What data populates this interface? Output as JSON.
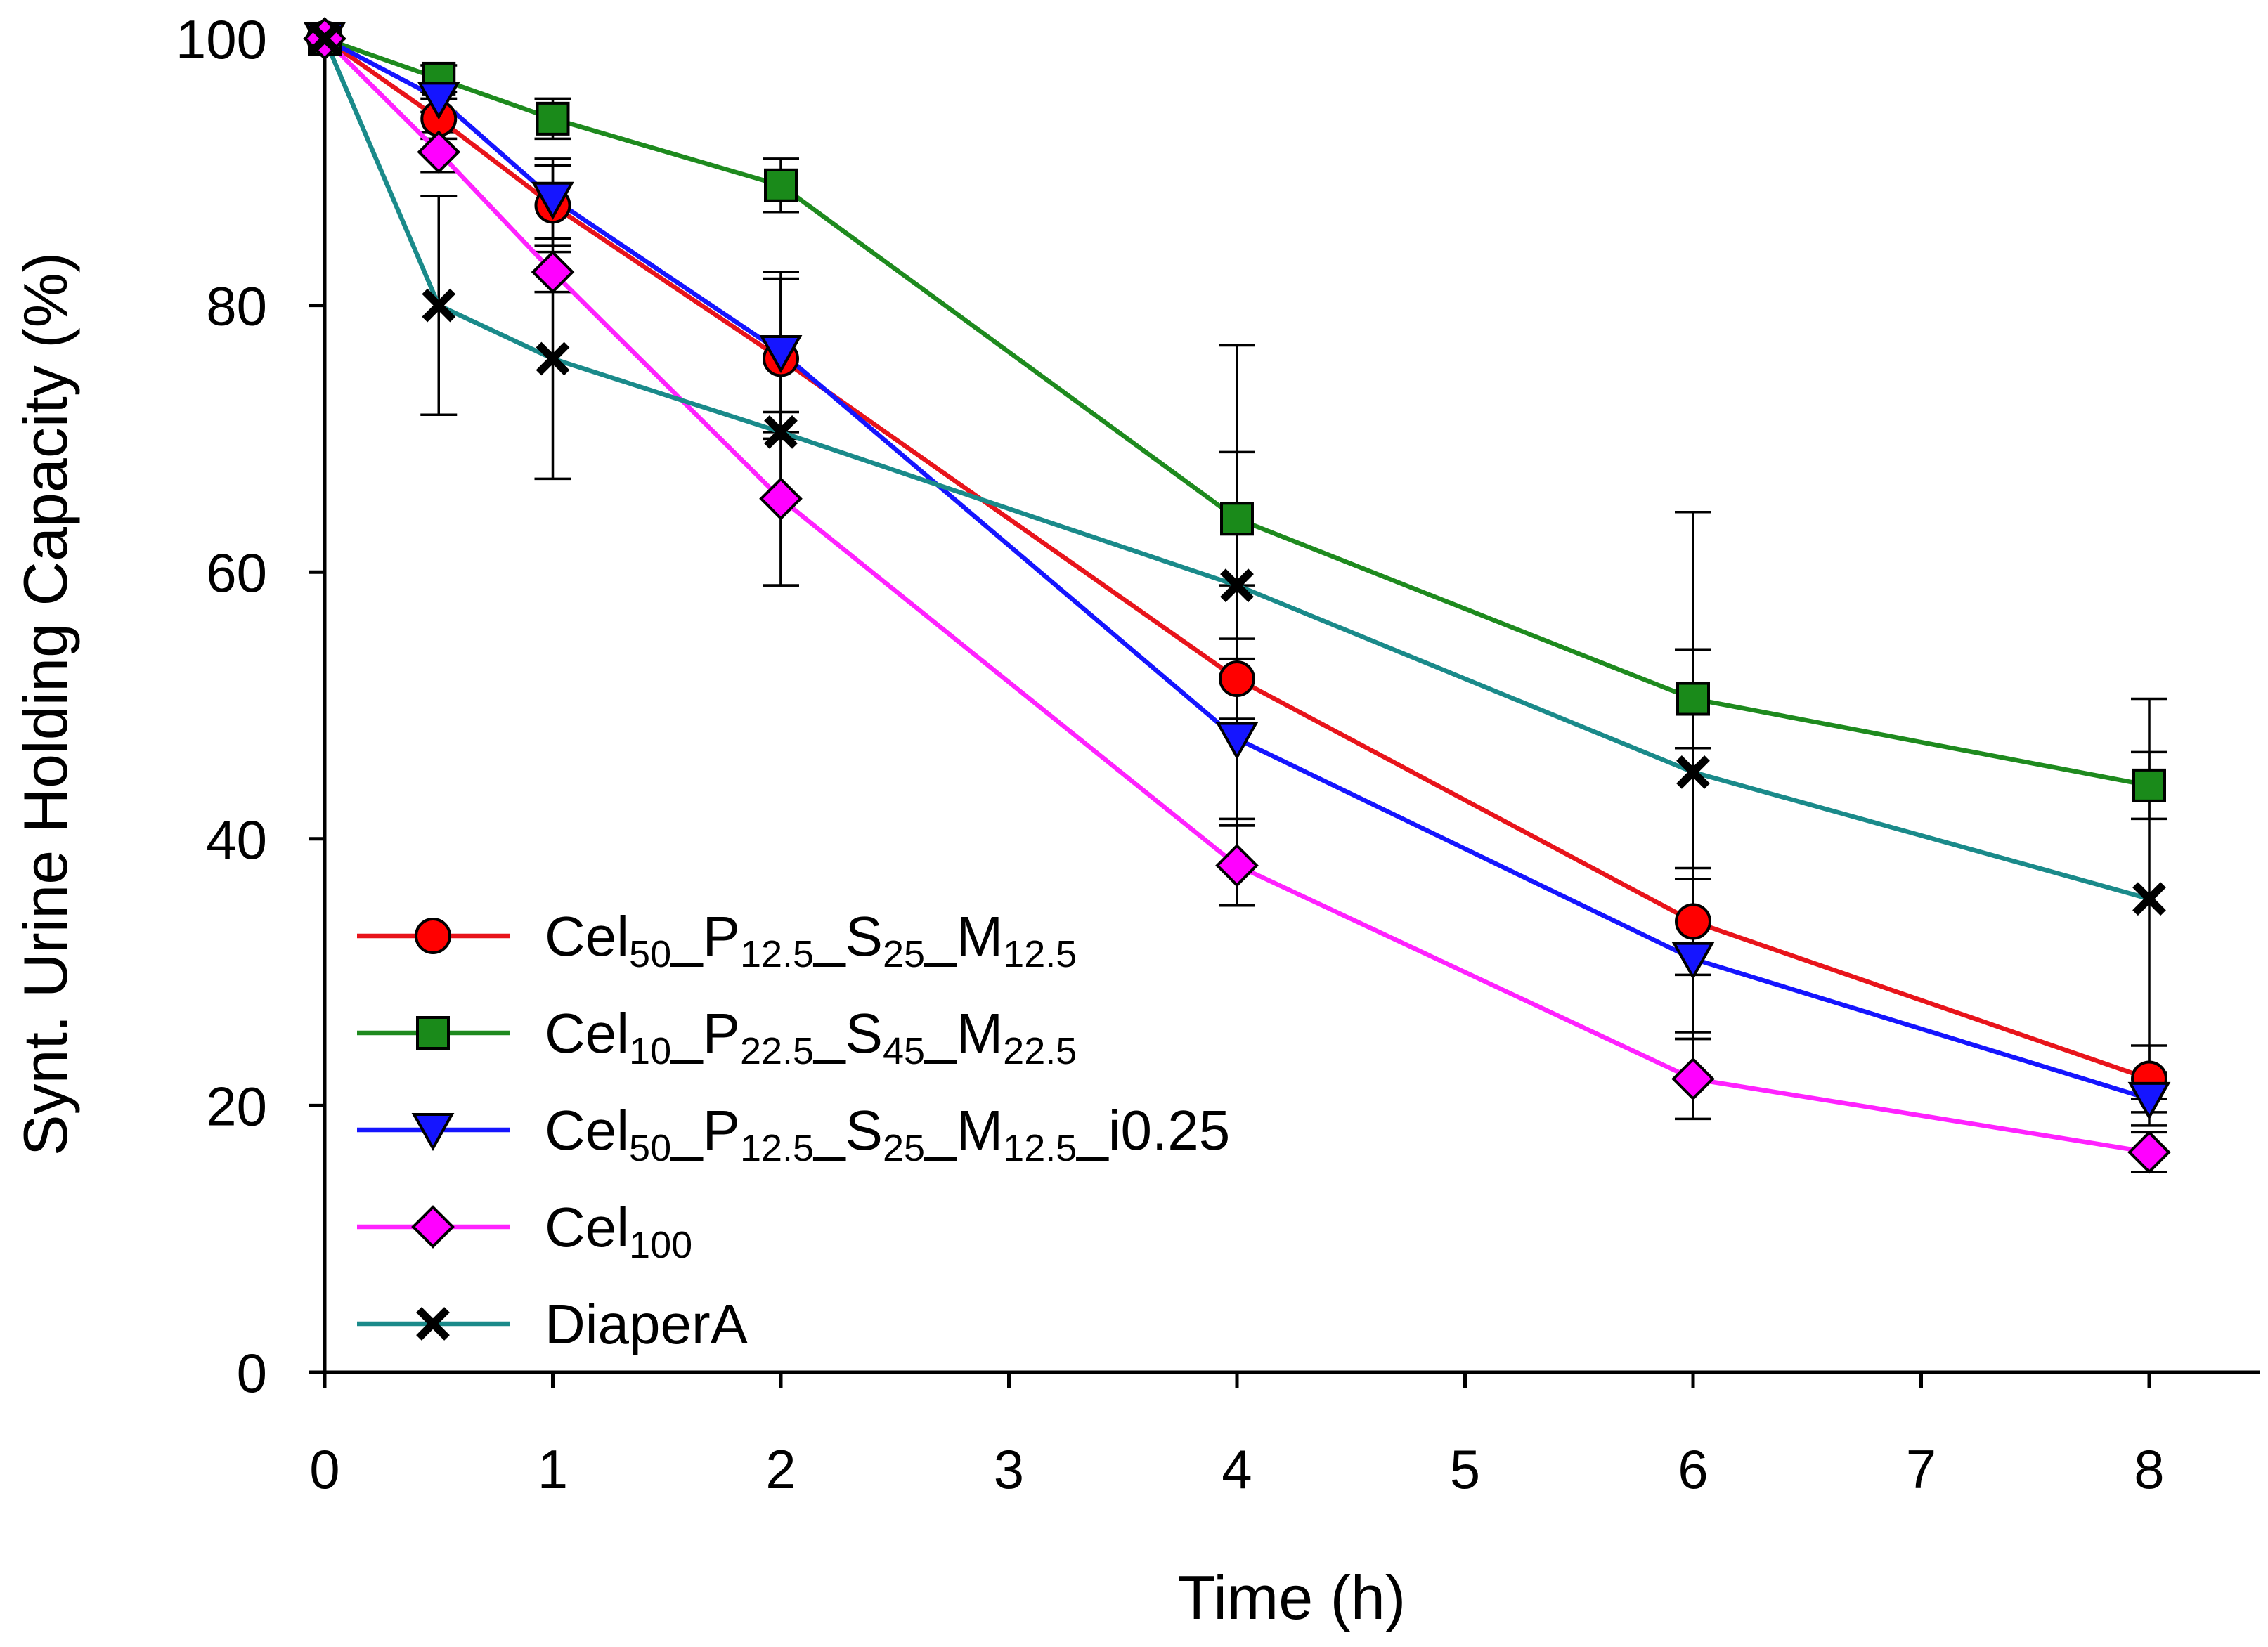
{
  "chart_data": {
    "type": "line",
    "title": "",
    "xlabel": "Time (h)",
    "ylabel": "Synt. Urine Holding Capacity (%)",
    "xlim": [
      0,
      8.5
    ],
    "ylim": [
      0,
      100
    ],
    "xticks": [
      0,
      1,
      2,
      3,
      4,
      5,
      6,
      7,
      8
    ],
    "yticks": [
      0,
      20,
      40,
      60,
      80,
      100
    ],
    "legend_position": "bottom-left",
    "grid": false,
    "series": [
      {
        "name": "Cel50_P12.5_S25_M12.5",
        "label_parts": [
          [
            "Cel",
            ""
          ],
          [
            "50",
            "sub"
          ],
          [
            "_P",
            ""
          ],
          [
            "12.5",
            "sub"
          ],
          [
            "_S",
            ""
          ],
          [
            "25",
            "sub"
          ],
          [
            "_M",
            ""
          ],
          [
            "12.5",
            "sub"
          ]
        ],
        "color": "#ff0000",
        "line_color": "#e8141b",
        "marker": "circle",
        "x": [
          0,
          0.5,
          1,
          2,
          4,
          6,
          8
        ],
        "y": [
          100,
          94,
          87.5,
          76,
          52,
          33.8,
          22
        ],
        "err": [
          0,
          1.5,
          3,
          6,
          3,
          4,
          2.5
        ]
      },
      {
        "name": "Cel10_P22.5_S45_M22.5",
        "label_parts": [
          [
            "Cel",
            ""
          ],
          [
            "10",
            "sub"
          ],
          [
            "_P",
            ""
          ],
          [
            "22.5",
            "sub"
          ],
          [
            "_S",
            ""
          ],
          [
            "45",
            "sub"
          ],
          [
            "_M",
            ""
          ],
          [
            "22.5",
            "sub"
          ]
        ],
        "color": "#1a8a1a",
        "line_color": "#1e8a1e",
        "marker": "square",
        "x": [
          0,
          0.5,
          1,
          2,
          4,
          6,
          8
        ],
        "y": [
          100,
          97,
          94,
          89,
          64,
          50.5,
          44
        ],
        "err": [
          0,
          1,
          1.5,
          2,
          5,
          3.7,
          2.5
        ]
      },
      {
        "name": "Cel50_P12.5_S25_M12.5_i0.25",
        "label_parts": [
          [
            "Cel",
            ""
          ],
          [
            "50",
            "sub"
          ],
          [
            "_P",
            ""
          ],
          [
            "12.5",
            "sub"
          ],
          [
            "_S",
            ""
          ],
          [
            "25",
            "sub"
          ],
          [
            "_M",
            ""
          ],
          [
            "12.5",
            "sub"
          ],
          [
            "_i0.25",
            ""
          ]
        ],
        "color": "#1515ff",
        "line_color": "#1515ff",
        "marker": "triangle-down",
        "x": [
          0,
          0.5,
          1,
          2,
          4,
          6,
          8
        ],
        "y": [
          100,
          95.5,
          88,
          76.5,
          47.5,
          31,
          20.5
        ],
        "err": [
          0,
          1,
          3,
          6,
          6,
          6,
          2
        ]
      },
      {
        "name": "Cel100",
        "label_parts": [
          [
            "Cel",
            ""
          ],
          [
            "100",
            "sub"
          ]
        ],
        "color": "#ff00ff",
        "line_color": "#ff22ff",
        "marker": "diamond",
        "x": [
          0,
          0.5,
          1,
          2,
          4,
          6,
          8
        ],
        "y": [
          100,
          91.5,
          82.5,
          65.5,
          38,
          22,
          16.5
        ],
        "err": [
          0,
          1.5,
          1.5,
          6.5,
          3,
          3,
          1.5
        ]
      },
      {
        "name": "DiaperA",
        "label_parts": [
          [
            "DiaperA",
            ""
          ]
        ],
        "color": "#000000",
        "line_color": "#1a8a8a",
        "marker": "x",
        "x": [
          0,
          0.5,
          1,
          2,
          4,
          6,
          8
        ],
        "y": [
          100,
          80,
          76,
          70.5,
          59,
          45,
          35.5
        ],
        "err": [
          0,
          8.2,
          9,
          11.5,
          18,
          19.5,
          15
        ]
      }
    ]
  }
}
